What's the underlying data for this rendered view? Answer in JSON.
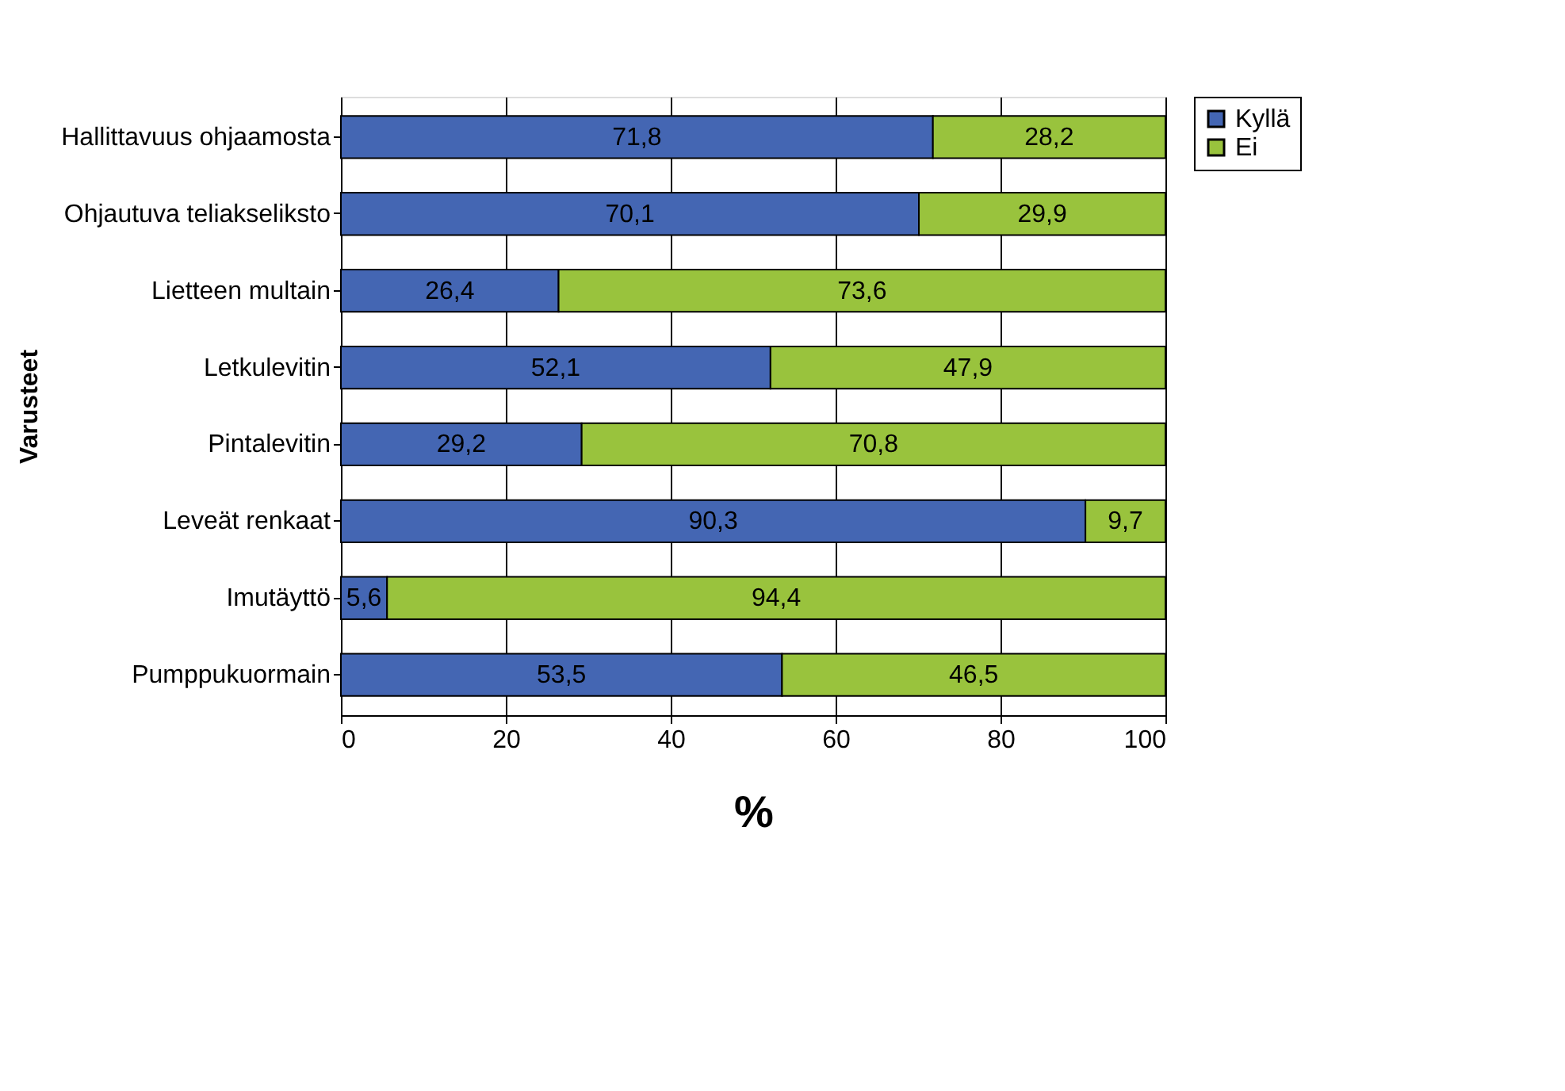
{
  "chart_data": {
    "type": "bar",
    "orientation": "horizontal",
    "stacked": true,
    "categories": [
      "Hallittavuus ohjaamosta",
      "Ohjautuva teliakseliksto",
      "Lietteen multain",
      "Letkulevitin",
      "Pintalevitin",
      "Leveät renkaat",
      "Imutäyttö",
      "Pumppukuormain"
    ],
    "series": [
      {
        "name": "Kyllä",
        "color": "#4466b3",
        "values": [
          71.8,
          70.1,
          26.4,
          52.1,
          29.2,
          90.3,
          5.6,
          53.5
        ],
        "value_labels": [
          "71,8",
          "70,1",
          "26,4",
          "52,1",
          "29,2",
          "90,3",
          "5,6",
          "53,5"
        ]
      },
      {
        "name": "Ei",
        "color": "#99c33d",
        "values": [
          28.2,
          29.9,
          73.6,
          47.9,
          70.8,
          9.7,
          94.4,
          46.5
        ],
        "value_labels": [
          "28,2",
          "29,9",
          "73,6",
          "47,9",
          "70,8",
          "9,7",
          "94,4",
          "46,5"
        ]
      }
    ],
    "xlim": [
      0,
      100
    ],
    "xticks": [
      0,
      20,
      40,
      60,
      80,
      100
    ],
    "xlabel": "%",
    "ylabel": "Varusteet",
    "grid": "x",
    "legend": "right"
  }
}
